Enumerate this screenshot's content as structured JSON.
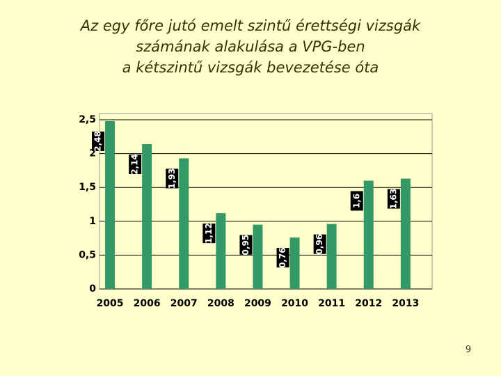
{
  "chart_data": {
    "type": "bar",
    "title": [
      "Az egy főre jutó emelt szintű érettségi vizsgák",
      "számának alakulása a VPG-ben",
      "a kétszintű vizsgák bevezetése óta"
    ],
    "categories": [
      "2005",
      "2006",
      "2007",
      "2008",
      "2009",
      "2010",
      "2011",
      "2012",
      "2013"
    ],
    "values": [
      2.48,
      2.14,
      1.93,
      1.12,
      0.95,
      0.76,
      0.96,
      1.6,
      1.63
    ],
    "value_labels": [
      "2,48",
      "2,14",
      "1,93",
      "1,12",
      "0,95",
      "0,76",
      "0,96",
      "1,6",
      "1,63"
    ],
    "color": "#339966",
    "ylim": [
      0,
      2.5
    ],
    "yticks": [
      0,
      {
        "value": 0.5,
        "label": "0,5"
      },
      1,
      {
        "value": 1.5,
        "label": "1,5"
      },
      2,
      {
        "value": 2.5,
        "label": "2,5"
      }
    ],
    "grid": true
  },
  "slide_number": "9"
}
